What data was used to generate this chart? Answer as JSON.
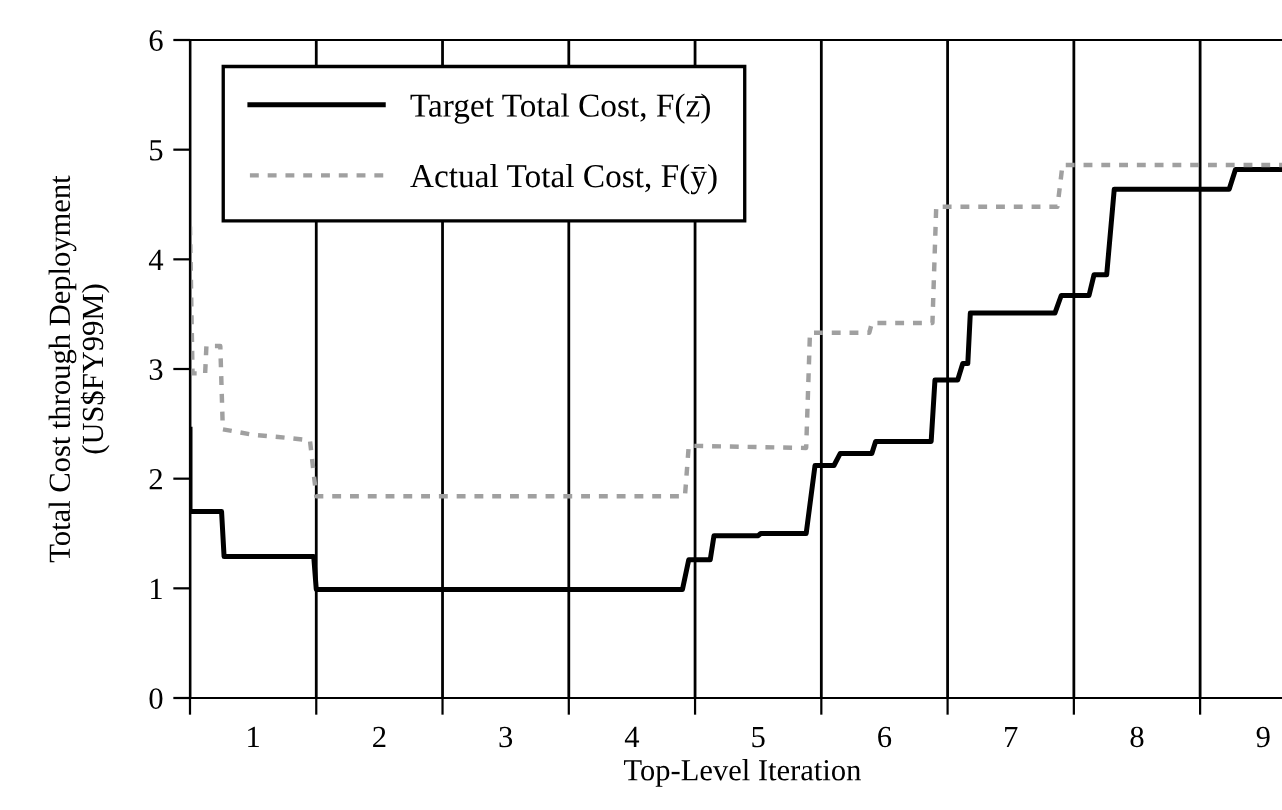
{
  "chart_data": {
    "type": "line",
    "xlabel": "Top-Level Iteration",
    "ylabel": "Total Cost through Deployment\n(US$FY99M)",
    "xlim": [
      0.5,
      9.25
    ],
    "ylim": [
      0,
      6
    ],
    "yticks": [
      0,
      1,
      2,
      3,
      4,
      5,
      6
    ],
    "xticks": [
      {
        "value": 0.5,
        "label": null
      },
      {
        "value": 1,
        "label": "1"
      },
      {
        "value": 1.5,
        "label": null
      },
      {
        "value": 2,
        "label": "2"
      },
      {
        "value": 2.5,
        "label": null
      },
      {
        "value": 3,
        "label": "3"
      },
      {
        "value": 3.5,
        "label": null
      },
      {
        "value": 4,
        "label": "4"
      },
      {
        "value": 4.5,
        "label": null
      },
      {
        "value": 5,
        "label": "5"
      },
      {
        "value": 5.5,
        "label": null
      },
      {
        "value": 6,
        "label": "6"
      },
      {
        "value": 6.5,
        "label": null
      },
      {
        "value": 7,
        "label": "7"
      },
      {
        "value": 7.5,
        "label": null
      },
      {
        "value": 8,
        "label": "8"
      },
      {
        "value": 8.5,
        "label": null
      },
      {
        "value": 9,
        "label": "9"
      }
    ],
    "grid": "x",
    "legend": "top left",
    "series": [
      {
        "name": "Target Total Cost, F(z̄)",
        "color": "#000000",
        "line_style": "solid",
        "x": [
          0.5,
          0.5,
          0.75,
          0.77,
          1.48,
          1.5,
          4.4,
          4.45,
          4.62,
          4.65,
          5.0,
          5.02,
          5.38,
          5.45,
          5.6,
          5.65,
          5.9,
          5.93,
          6.37,
          6.4,
          6.58,
          6.62,
          6.66,
          6.68,
          7.35,
          7.4,
          7.62,
          7.66,
          7.76,
          7.82,
          8.73,
          8.78,
          9.25
        ],
        "values": [
          2.45,
          1.7,
          1.7,
          1.29,
          1.29,
          0.99,
          0.99,
          1.26,
          1.26,
          1.48,
          1.48,
          1.5,
          1.5,
          2.12,
          2.12,
          2.23,
          2.23,
          2.34,
          2.34,
          2.9,
          2.9,
          3.05,
          3.05,
          3.51,
          3.51,
          3.67,
          3.67,
          3.86,
          3.86,
          4.64,
          4.64,
          4.82,
          4.82
        ]
      },
      {
        "name": "Actual Total Cost, F(ȳ)",
        "color": "#a0a0a0",
        "line_style": "dotted",
        "x": [
          0.5,
          0.52,
          0.62,
          0.63,
          0.74,
          0.76,
          1.0,
          1.2,
          1.45,
          1.5,
          4.42,
          4.45,
          5.38,
          5.41,
          5.88,
          5.9,
          6.38,
          6.41,
          7.37,
          7.41,
          9.25
        ],
        "values": [
          4.3,
          2.96,
          2.96,
          3.21,
          3.21,
          2.45,
          2.4,
          2.38,
          2.35,
          1.84,
          1.84,
          2.3,
          2.28,
          3.33,
          3.33,
          3.42,
          3.42,
          4.48,
          4.48,
          4.86,
          4.86
        ]
      }
    ]
  }
}
